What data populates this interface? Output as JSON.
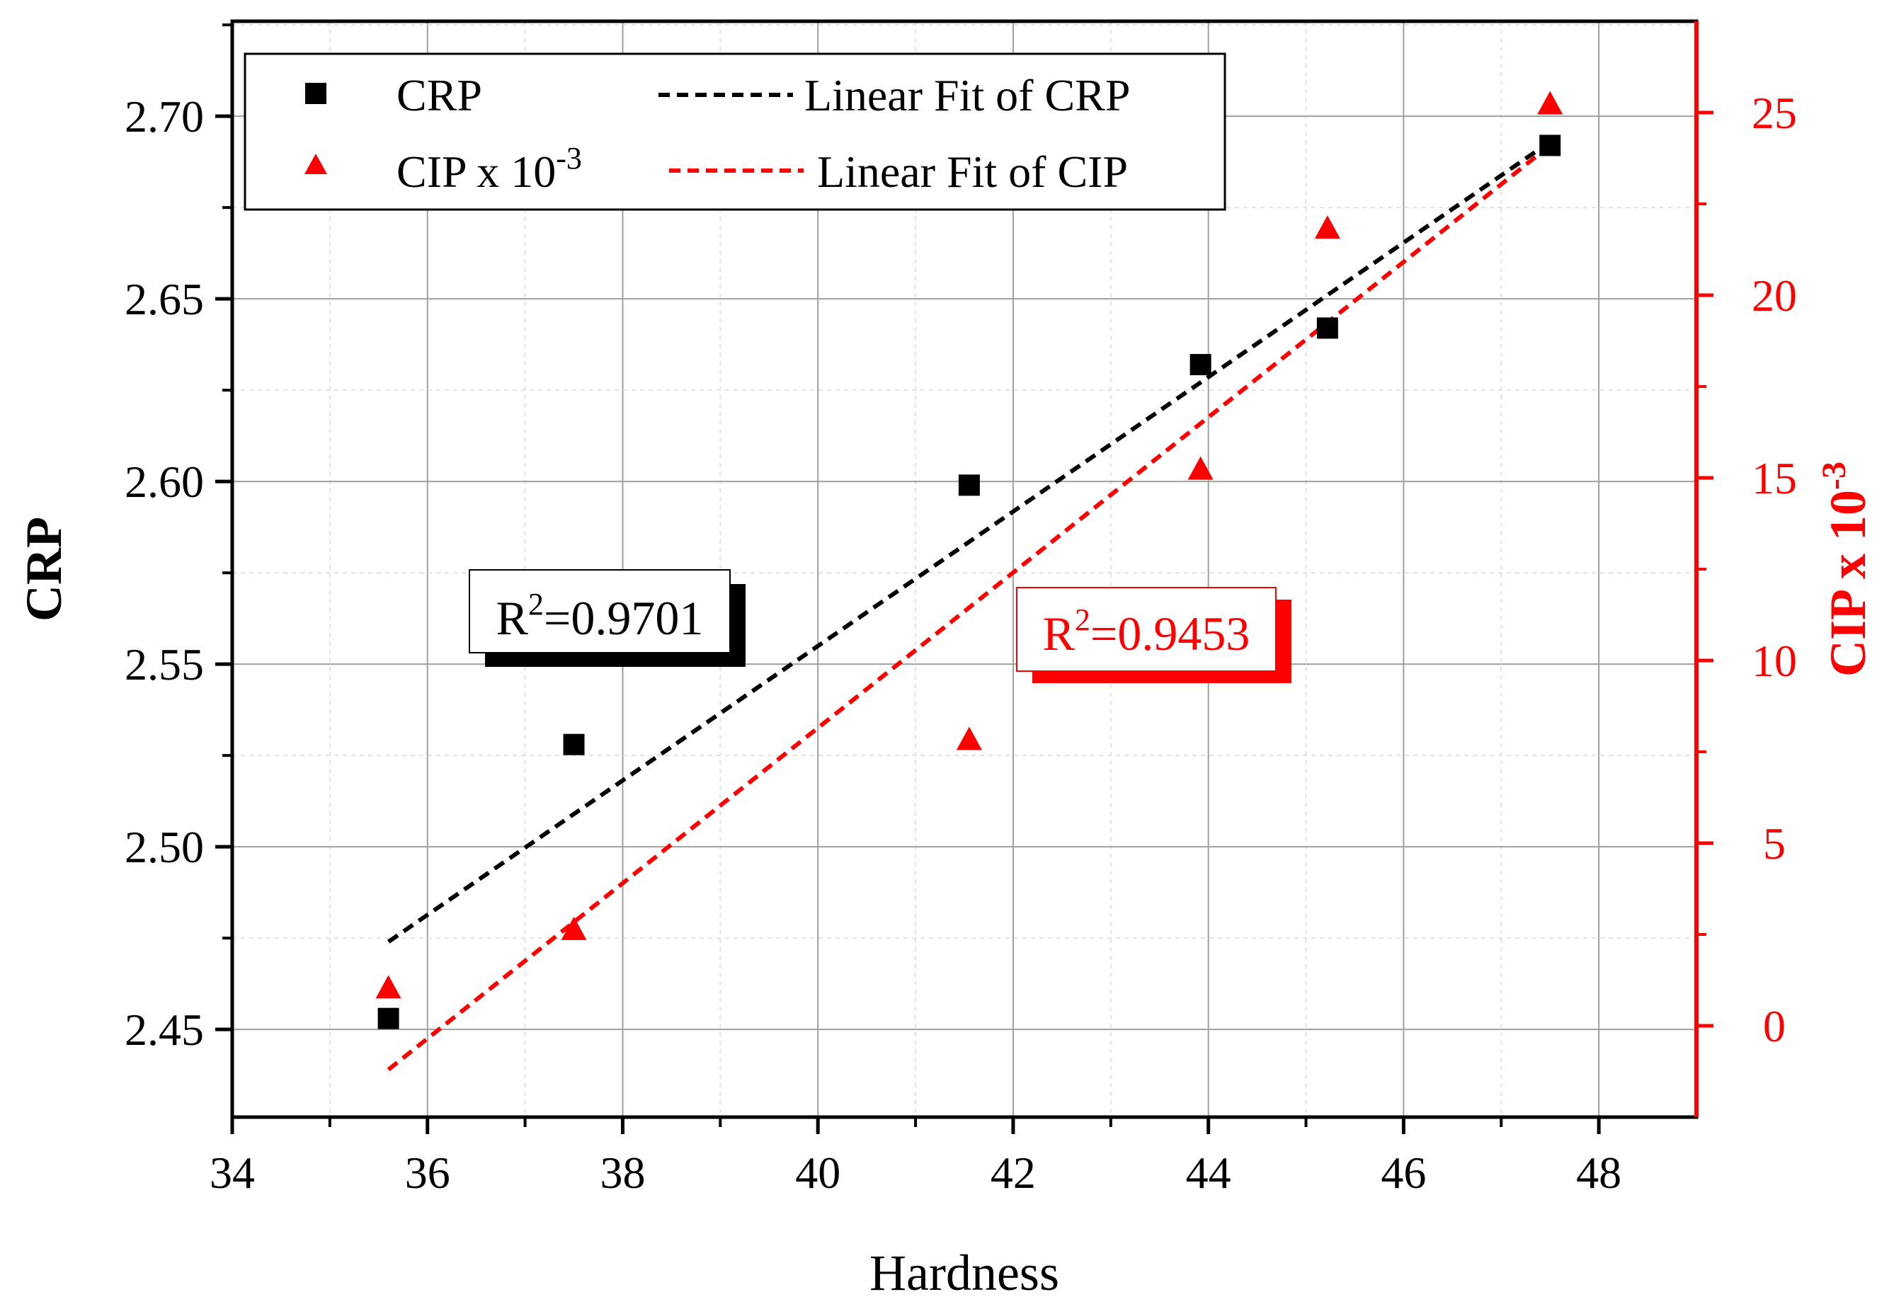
{
  "chart_data": {
    "type": "scatter",
    "xlabel": "Hardness",
    "ylabel_left": "CRP",
    "ylabel_right": "CIP x 10",
    "ylabel_right_exp": "-3",
    "xlim": [
      34,
      49
    ],
    "ylim_left": [
      2.426,
      2.726
    ],
    "ylim_right": [
      -2.5,
      27.5
    ],
    "x_ticks": [
      34,
      36,
      38,
      40,
      42,
      44,
      46,
      48
    ],
    "x_tick_labels": [
      "34",
      "36",
      "38",
      "40",
      "42",
      "44",
      "46",
      "48"
    ],
    "y_left_ticks": [
      2.45,
      2.5,
      2.55,
      2.6,
      2.65,
      2.7
    ],
    "y_left_tick_labels": [
      "2.45",
      "2.50",
      "2.55",
      "2.60",
      "2.65",
      "2.70"
    ],
    "y_right_ticks": [
      0,
      5,
      10,
      15,
      20,
      25
    ],
    "y_right_tick_labels": [
      "0",
      "5",
      "10",
      "15",
      "20",
      "25"
    ],
    "grid": true,
    "legend_position": "top-left",
    "series": [
      {
        "name": "CRP",
        "axis": "left",
        "marker": "square",
        "color": "#000000",
        "points": [
          {
            "x": 35.6,
            "y": 2.453
          },
          {
            "x": 37.5,
            "y": 2.528
          },
          {
            "x": 41.55,
            "y": 2.599
          },
          {
            "x": 43.92,
            "y": 2.632
          },
          {
            "x": 45.22,
            "y": 2.642
          },
          {
            "x": 47.5,
            "y": 2.692
          }
        ]
      },
      {
        "name": "CIP x 10",
        "name_exp": "-3",
        "axis": "right",
        "marker": "triangle",
        "color": "#ff0000",
        "points": [
          {
            "x": 35.6,
            "y": 1.0
          },
          {
            "x": 37.5,
            "y": 2.6
          },
          {
            "x": 41.55,
            "y": 7.8
          },
          {
            "x": 43.92,
            "y": 15.2
          },
          {
            "x": 45.22,
            "y": 21.8
          },
          {
            "x": 47.5,
            "y": 25.2
          }
        ]
      }
    ],
    "fits": [
      {
        "name": "Linear Fit of CRP",
        "axis": "left",
        "color": "#000000",
        "x": [
          35.6,
          47.5
        ],
        "y": [
          2.474,
          2.693
        ]
      },
      {
        "name": "Linear Fit of CIP",
        "axis": "right",
        "color": "#ff0000",
        "x": [
          35.6,
          47.5
        ],
        "y": [
          -1.2,
          24.1
        ]
      }
    ],
    "annotations": [
      {
        "label": "R",
        "exp": "2",
        "value": "=0.9701",
        "color": "#000000"
      },
      {
        "label": "R",
        "exp": "2",
        "value": "=0.9453",
        "color": "#ff0000"
      }
    ]
  }
}
